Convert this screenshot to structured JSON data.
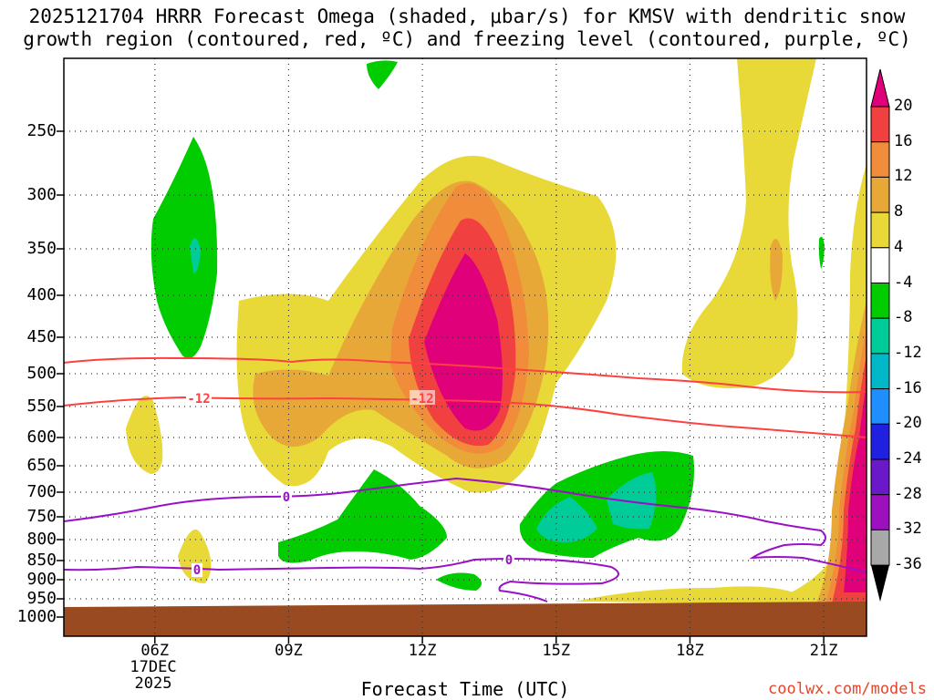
{
  "chart_data": {
    "type": "time-height contour (shaded + contoured)",
    "title_line1": "2025121704 HRRR Forecast Omega (shaded, μbar/s) for KMSV with dendritic snow",
    "title_line2": "growth region (contoured, red, ºC) and freezing level (contoured, purple, ºC)",
    "xlabel": "Forecast Time (UTC)",
    "x_ticks": [
      {
        "label": "06Z",
        "hour": 6
      },
      {
        "label": "09Z",
        "hour": 9
      },
      {
        "label": "12Z",
        "hour": 12
      },
      {
        "label": "15Z",
        "hour": 15
      },
      {
        "label": "18Z",
        "hour": 18
      },
      {
        "label": "21Z",
        "hour": 21
      }
    ],
    "x_range_hours": [
      4,
      22
    ],
    "date_label": {
      "day": "17DEC",
      "year": "2025"
    },
    "y_ticks": [
      250,
      300,
      350,
      400,
      450,
      500,
      550,
      600,
      650,
      700,
      750,
      800,
      850,
      900,
      950,
      1000
    ],
    "y_unit": "hPa",
    "grid": "dotted",
    "contour_labels": [
      {
        "text": "-12",
        "series": "dendritic growth region (red)"
      },
      {
        "text": "-12",
        "series": "dendritic growth region (red)"
      },
      {
        "text": "0",
        "series": "freezing level (purple)"
      },
      {
        "text": "0",
        "series": "freezing level (purple)"
      },
      {
        "text": "0",
        "series": "freezing level (purple)"
      }
    ],
    "colorbar": {
      "levels": [
        {
          "label": "20",
          "color": "#e0007a"
        },
        {
          "label": "16",
          "color": "#f04040"
        },
        {
          "label": "12",
          "color": "#f08c3a"
        },
        {
          "label": "8",
          "color": "#e8a838"
        },
        {
          "label": "4",
          "color": "#e8d838"
        },
        {
          "label": "-4",
          "color": "#ffffff"
        },
        {
          "label": "-8",
          "color": "#00cc00"
        },
        {
          "label": "-12",
          "color": "#00cc99"
        },
        {
          "label": "-16",
          "color": "#00b8c8"
        },
        {
          "label": "-20",
          "color": "#1f8fff"
        },
        {
          "label": "-24",
          "color": "#2020e0"
        },
        {
          "label": "-28",
          "color": "#6a18c8"
        },
        {
          "label": "-32",
          "color": "#9c10c0"
        },
        {
          "label": "-36",
          "color": "#a8a8a8"
        }
      ]
    }
  },
  "credit": "coolwx.com/models",
  "colors": {
    "yellow": "#e8d838",
    "gold": "#e8a838",
    "orange": "#f08c3a",
    "red": "#f04040",
    "magenta": "#e0007a",
    "green": "#00cc00",
    "teal": "#00cc99",
    "cyan": "#00b8c8",
    "ground": "#9a4a20",
    "red_line": "#ff4040",
    "purple_line": "#9a10c8"
  }
}
